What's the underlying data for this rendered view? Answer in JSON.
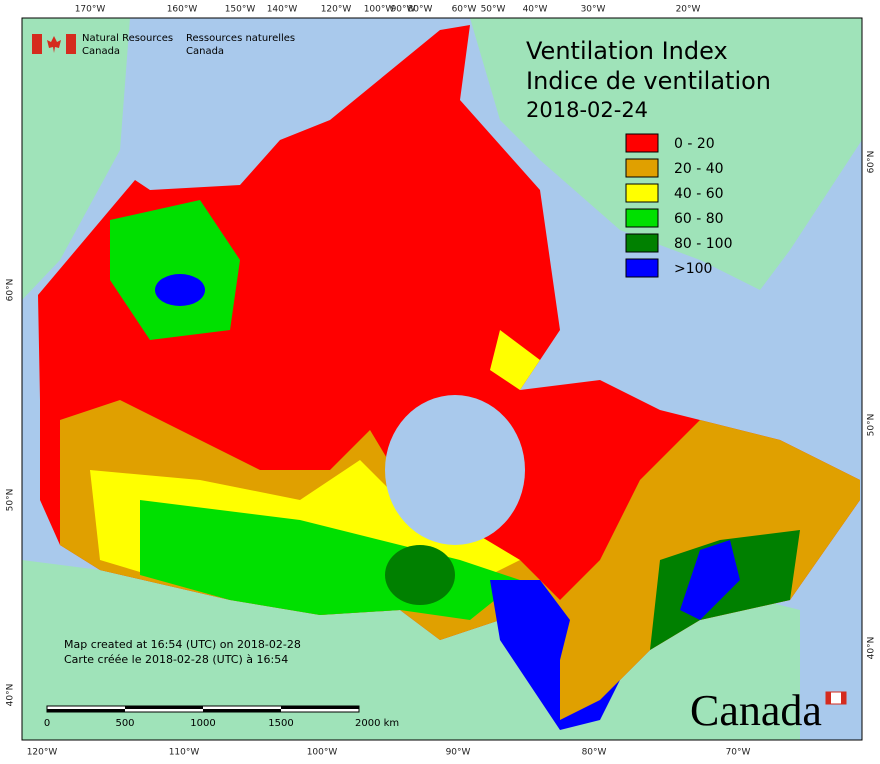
{
  "header": {
    "org_en": [
      "Natural Resources",
      "Canada"
    ],
    "org_fr": [
      "Ressources naturelles",
      "Canada"
    ]
  },
  "title": [
    "Ventilation Index",
    "Indice de ventilation",
    "2018-02-24"
  ],
  "legend": [
    {
      "label": "0 - 20",
      "color": "#ff0000"
    },
    {
      "label": "20 - 40",
      "color": "#e0a000"
    },
    {
      "label": "40 - 60",
      "color": "#ffff00"
    },
    {
      "label": "60 - 80",
      "color": "#00e000"
    },
    {
      "label": "80 - 100",
      "color": "#008000"
    },
    {
      "label": ">100",
      "color": "#0000ff"
    }
  ],
  "graticule": {
    "top": [
      "170°W",
      "160°W",
      "150°W",
      "140°W",
      "120°W",
      "100°W",
      "90°W",
      "80°W",
      "60°W",
      "50°W",
      "40°W",
      "30°W",
      "20°W"
    ],
    "bottom": [
      "120°W",
      "110°W",
      "100°W",
      "90°W",
      "80°W",
      "70°W"
    ],
    "left": [
      "60°N",
      "50°N",
      "40°N"
    ],
    "right": [
      "60°N",
      "50°N",
      "40°N"
    ]
  },
  "footnote": [
    "Map created at 16:54 (UTC) on 2018-02-28",
    "Carte créée le 2018-02-28 (UTC) à 16:54"
  ],
  "scale_bar": [
    "0",
    "500",
    "1000",
    "1500",
    "2000 km"
  ],
  "wordmark": "Canada"
}
